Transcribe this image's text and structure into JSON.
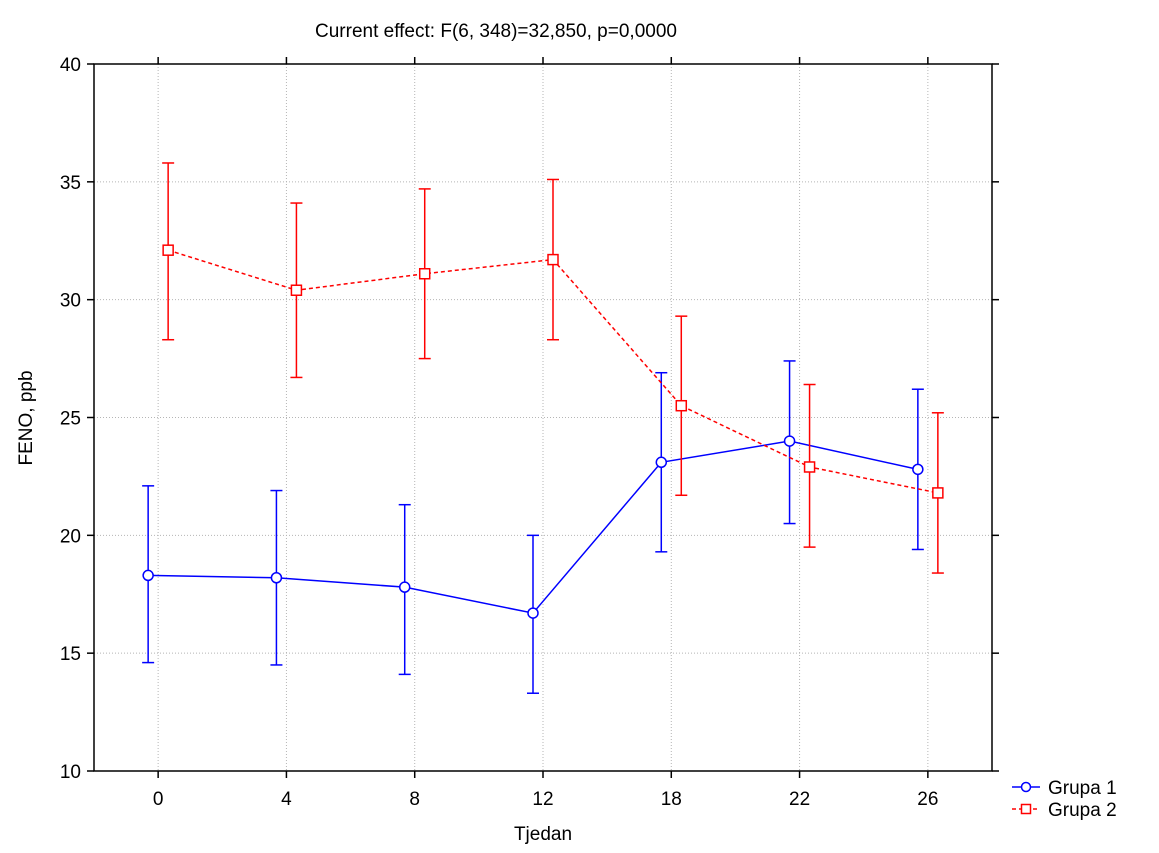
{
  "chart_data": {
    "type": "line",
    "title": "Current effect: F(6, 348)=32,850, p=0,0000",
    "xlabel": "Tjedan",
    "ylabel": "FENO, ppb",
    "categories": [
      "0",
      "4",
      "8",
      "12",
      "18",
      "22",
      "26"
    ],
    "ylim": [
      10,
      40
    ],
    "yticks": [
      10,
      15,
      20,
      25,
      30,
      35,
      40
    ],
    "grid": true,
    "legend_position": "bottom-right",
    "series": [
      {
        "name": "Grupa 1",
        "color": "#0000ff",
        "marker": "circle",
        "line_style": "solid",
        "values": [
          18.3,
          18.2,
          17.8,
          16.7,
          23.1,
          24.0,
          22.8
        ],
        "lower": [
          14.6,
          14.5,
          14.1,
          13.3,
          19.3,
          20.5,
          19.4
        ],
        "upper": [
          22.1,
          21.9,
          21.3,
          20.0,
          26.9,
          27.4,
          26.2
        ]
      },
      {
        "name": "Grupa 2",
        "color": "#ff0000",
        "marker": "square",
        "line_style": "dashed",
        "values": [
          32.1,
          30.4,
          31.1,
          31.7,
          25.5,
          22.9,
          21.8
        ],
        "lower": [
          28.3,
          26.7,
          27.5,
          28.3,
          21.7,
          19.5,
          18.4
        ],
        "upper": [
          35.8,
          34.1,
          34.7,
          35.1,
          29.3,
          26.4,
          25.2
        ]
      }
    ]
  }
}
